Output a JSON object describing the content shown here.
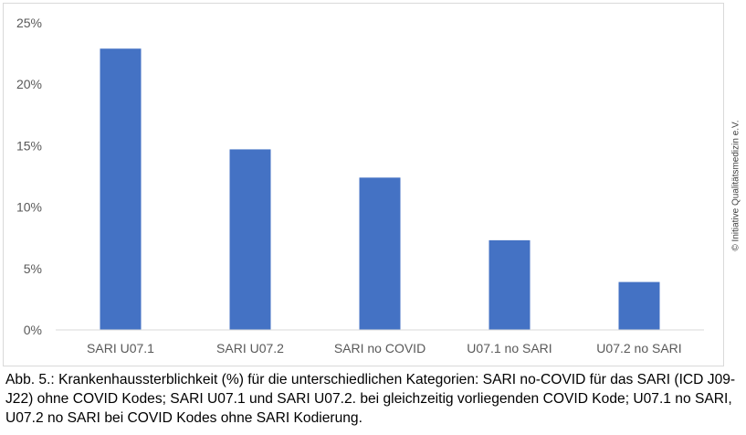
{
  "chart_data": {
    "type": "bar",
    "categories": [
      "SARI U07.1",
      "SARI U07.2",
      "SARI no COVID",
      "U07.1 no SARI",
      "U07.2 no SARI"
    ],
    "values": [
      22.9,
      14.7,
      12.4,
      7.3,
      3.9
    ],
    "ylim": [
      0,
      25
    ],
    "yticks": [
      0,
      5,
      10,
      15,
      20,
      25
    ],
    "ytick_labels": [
      "0%",
      "5%",
      "10%",
      "15%",
      "20%",
      "25%"
    ],
    "unit": "%",
    "grid": false,
    "legend": "none",
    "bar_color": "#4472c4",
    "axis_color": "#d9d9d9",
    "tick_label_color": "#595959"
  },
  "copyright": "© Initiative Qualitätsmedizin e.V.",
  "caption": "Abb. 5.: Krankenhaussterblichkeit (%) für die unterschiedlichen Kategorien: SARI no-COVID für das SARI (ICD J09-J22) ohne COVID Kodes; SARI U07.1 und SARI U07.2. bei gleichzeitig vorliegenden COVID Kode; U07.1 no SARI, U07.2 no SARI bei COVID Kodes ohne SARI Kodierung."
}
